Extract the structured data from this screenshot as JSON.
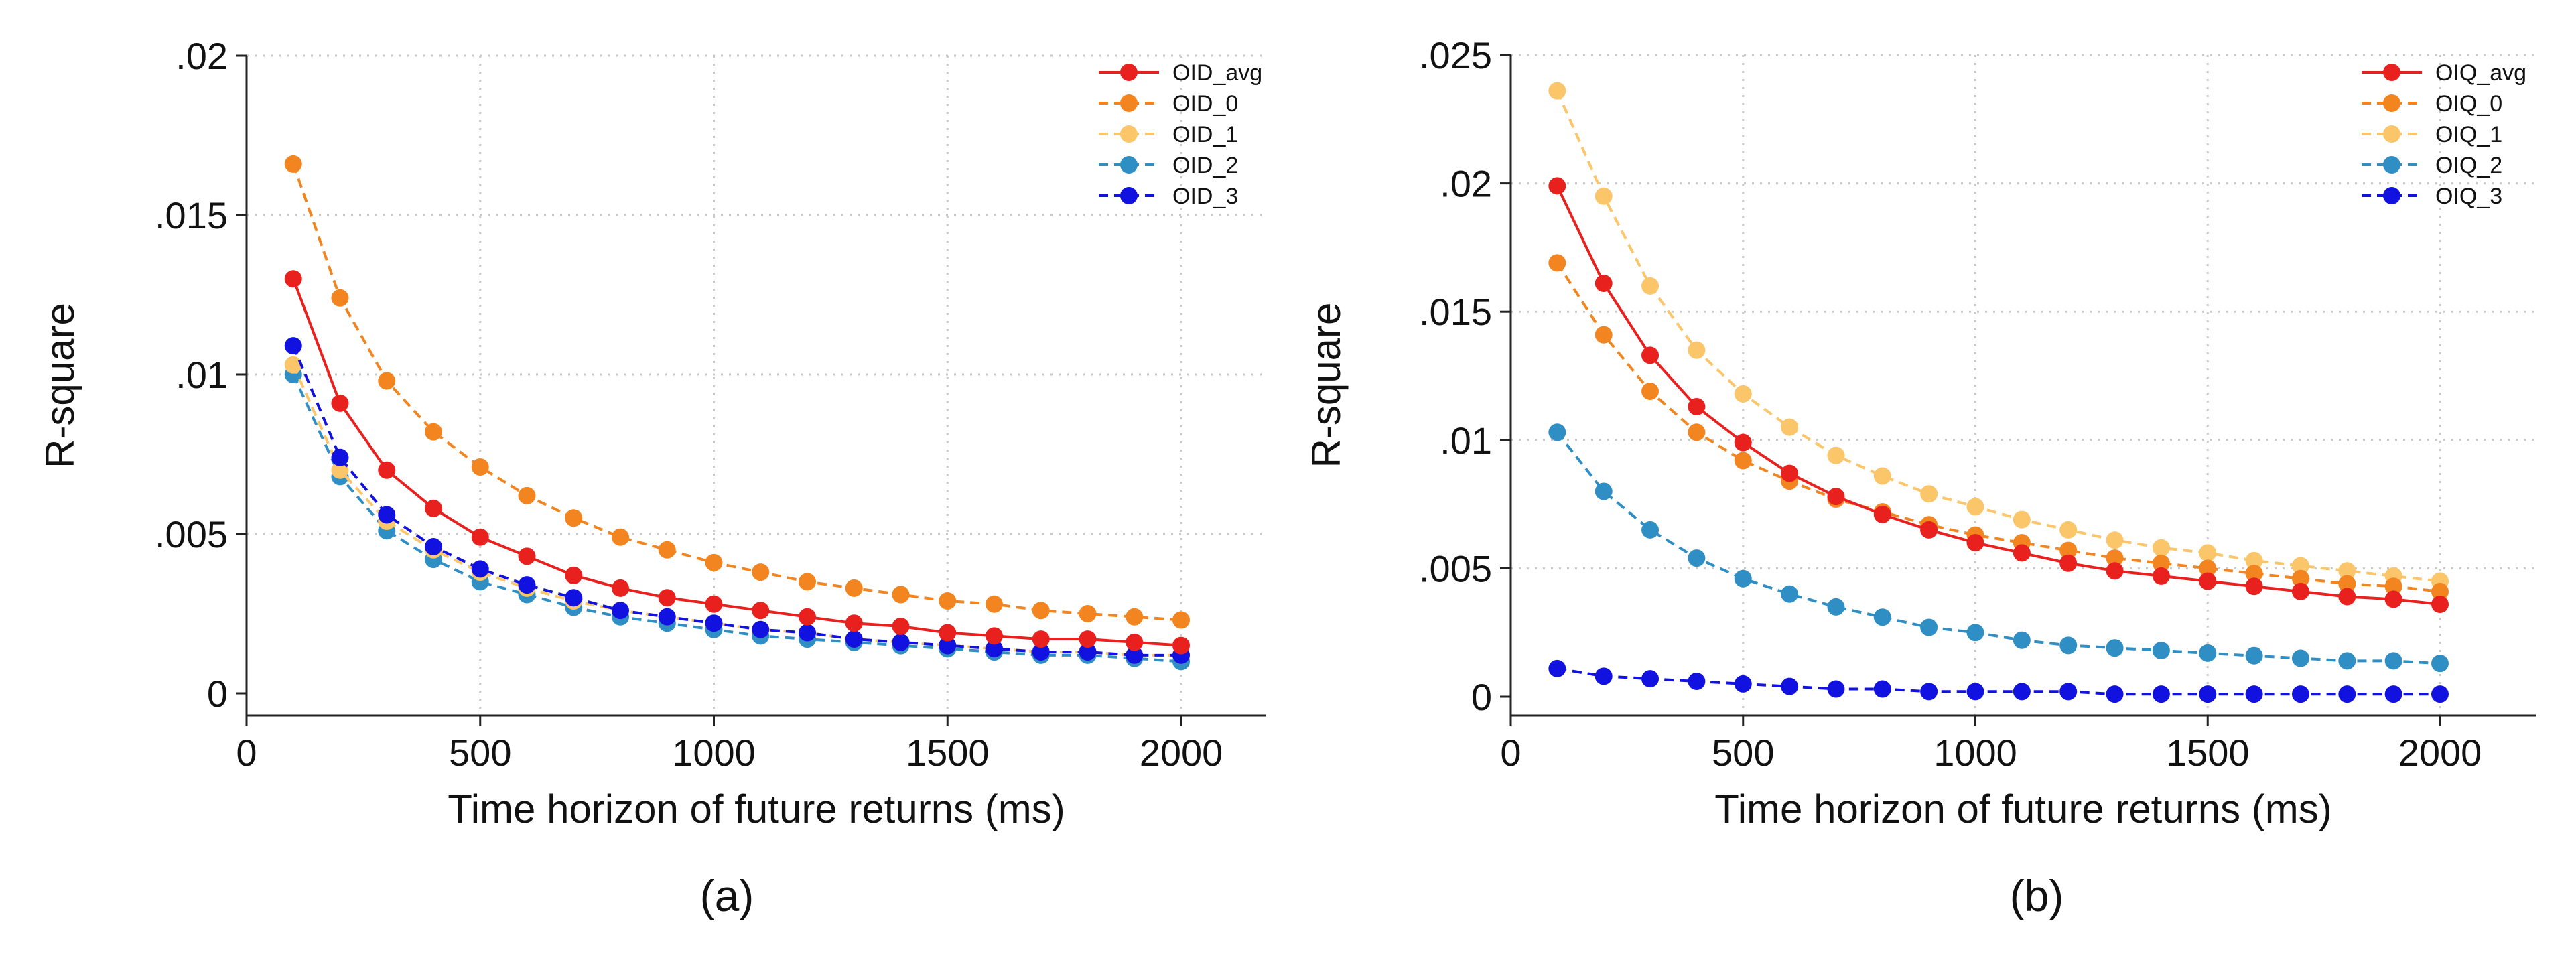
{
  "chart_data": [
    {
      "type": "line",
      "caption": "(a)",
      "xlabel": "Time horizon of future returns (ms)",
      "ylabel": "R-square",
      "xlim": [
        0,
        2200
      ],
      "ylim": [
        0,
        0.02
      ],
      "xticks": [
        {
          "v": 0,
          "label": "0"
        },
        {
          "v": 500,
          "label": "500"
        },
        {
          "v": 1000,
          "label": "1000"
        },
        {
          "v": 1500,
          "label": "1500"
        },
        {
          "v": 2000,
          "label": "2000"
        }
      ],
      "yticks": [
        {
          "v": 0,
          "label": "0"
        },
        {
          "v": 0.005,
          "label": ".005"
        },
        {
          "v": 0.01,
          "label": ".01"
        },
        {
          "v": 0.015,
          "label": ".015"
        },
        {
          "v": 0.02,
          "label": ".02"
        }
      ],
      "grid": true,
      "legend_position": "top-right",
      "x": [
        100,
        200,
        300,
        400,
        500,
        600,
        700,
        800,
        900,
        1000,
        1100,
        1200,
        1300,
        1400,
        1500,
        1600,
        1700,
        1800,
        1900,
        2000
      ],
      "series": [
        {
          "name": "OID_avg",
          "color": "#e8201e",
          "dash": false,
          "values": [
            0.013,
            0.0091,
            0.007,
            0.0058,
            0.0049,
            0.0043,
            0.0037,
            0.0033,
            0.003,
            0.0028,
            0.0026,
            0.0024,
            0.0022,
            0.0021,
            0.0019,
            0.0018,
            0.0017,
            0.0017,
            0.0016,
            0.0015
          ]
        },
        {
          "name": "OID_0",
          "color": "#f28520",
          "dash": true,
          "values": [
            0.0166,
            0.0124,
            0.0098,
            0.0082,
            0.0071,
            0.0062,
            0.0055,
            0.0049,
            0.0045,
            0.0041,
            0.0038,
            0.0035,
            0.0033,
            0.0031,
            0.0029,
            0.0028,
            0.0026,
            0.0025,
            0.0024,
            0.0023
          ]
        },
        {
          "name": "OID_1",
          "color": "#fbc56a",
          "dash": true,
          "values": [
            0.0103,
            0.007,
            0.0054,
            0.0045,
            0.0038,
            0.0033,
            0.0029,
            0.0026,
            0.0024,
            0.0022,
            0.002,
            0.0019,
            0.0017,
            0.0016,
            0.0015,
            0.0014,
            0.0013,
            0.0013,
            0.0012,
            0.0012
          ]
        },
        {
          "name": "OID_2",
          "color": "#2f8fc4",
          "dash": true,
          "values": [
            0.01,
            0.0068,
            0.0051,
            0.0042,
            0.0035,
            0.0031,
            0.0027,
            0.0024,
            0.0022,
            0.002,
            0.0018,
            0.0017,
            0.0016,
            0.0015,
            0.0014,
            0.0013,
            0.0012,
            0.0012,
            0.0011,
            0.001
          ]
        },
        {
          "name": "OID_3",
          "color": "#1212e0",
          "dash": true,
          "values": [
            0.0109,
            0.0074,
            0.0056,
            0.0046,
            0.0039,
            0.0034,
            0.003,
            0.0026,
            0.0024,
            0.0022,
            0.002,
            0.0019,
            0.0017,
            0.0016,
            0.0015,
            0.0014,
            0.0013,
            0.0013,
            0.0012,
            0.0012
          ]
        }
      ]
    },
    {
      "type": "line",
      "caption": "(b)",
      "xlabel": "Time horizon of future returns (ms)",
      "ylabel": "R-square",
      "xlim": [
        0,
        2200
      ],
      "ylim": [
        0,
        0.025
      ],
      "xticks": [
        {
          "v": 0,
          "label": "0"
        },
        {
          "v": 500,
          "label": "500"
        },
        {
          "v": 1000,
          "label": "1000"
        },
        {
          "v": 1500,
          "label": "1500"
        },
        {
          "v": 2000,
          "label": "2000"
        }
      ],
      "yticks": [
        {
          "v": 0,
          "label": "0"
        },
        {
          "v": 0.005,
          "label": ".005"
        },
        {
          "v": 0.01,
          "label": ".01"
        },
        {
          "v": 0.015,
          "label": ".015"
        },
        {
          "v": 0.02,
          "label": ".02"
        },
        {
          "v": 0.025,
          "label": ".025"
        }
      ],
      "grid": true,
      "legend_position": "top-right",
      "x": [
        100,
        200,
        300,
        400,
        500,
        600,
        700,
        800,
        900,
        1000,
        1100,
        1200,
        1300,
        1400,
        1500,
        1600,
        1700,
        1800,
        1900,
        2000
      ],
      "series": [
        {
          "name": "OIQ_avg",
          "color": "#e8201e",
          "dash": false,
          "values": [
            0.0199,
            0.0161,
            0.0133,
            0.0113,
            0.0099,
            0.0087,
            0.0078,
            0.0071,
            0.0065,
            0.006,
            0.0056,
            0.0052,
            0.0049,
            0.0047,
            0.0045,
            0.0043,
            0.0041,
            0.0039,
            0.0038,
            0.0036
          ]
        },
        {
          "name": "OIQ_0",
          "color": "#f28520",
          "dash": true,
          "values": [
            0.0169,
            0.0141,
            0.0119,
            0.0103,
            0.0092,
            0.0084,
            0.0077,
            0.0072,
            0.0067,
            0.0063,
            0.006,
            0.0057,
            0.0054,
            0.0052,
            0.005,
            0.0048,
            0.0046,
            0.0044,
            0.0043,
            0.0041
          ]
        },
        {
          "name": "OIQ_1",
          "color": "#fbc56a",
          "dash": true,
          "values": [
            0.0236,
            0.0195,
            0.016,
            0.0135,
            0.0118,
            0.0105,
            0.0094,
            0.0086,
            0.0079,
            0.0074,
            0.0069,
            0.0065,
            0.0061,
            0.0058,
            0.0056,
            0.0053,
            0.0051,
            0.0049,
            0.0047,
            0.0045
          ]
        },
        {
          "name": "OIQ_2",
          "color": "#2f8fc4",
          "dash": true,
          "values": [
            0.0103,
            0.008,
            0.0065,
            0.0054,
            0.0046,
            0.004,
            0.0035,
            0.0031,
            0.0027,
            0.0025,
            0.0022,
            0.002,
            0.0019,
            0.0018,
            0.0017,
            0.0016,
            0.0015,
            0.0014,
            0.0014,
            0.0013
          ]
        },
        {
          "name": "OIQ_3",
          "color": "#1212e0",
          "dash": true,
          "values": [
            0.0011,
            0.0008,
            0.0007,
            0.0006,
            0.0005,
            0.0004,
            0.0003,
            0.0003,
            0.0002,
            0.0002,
            0.0002,
            0.0002,
            0.0001,
            0.0001,
            0.0001,
            0.0001,
            0.0001,
            0.0001,
            0.0001,
            0.0001
          ]
        }
      ]
    }
  ]
}
